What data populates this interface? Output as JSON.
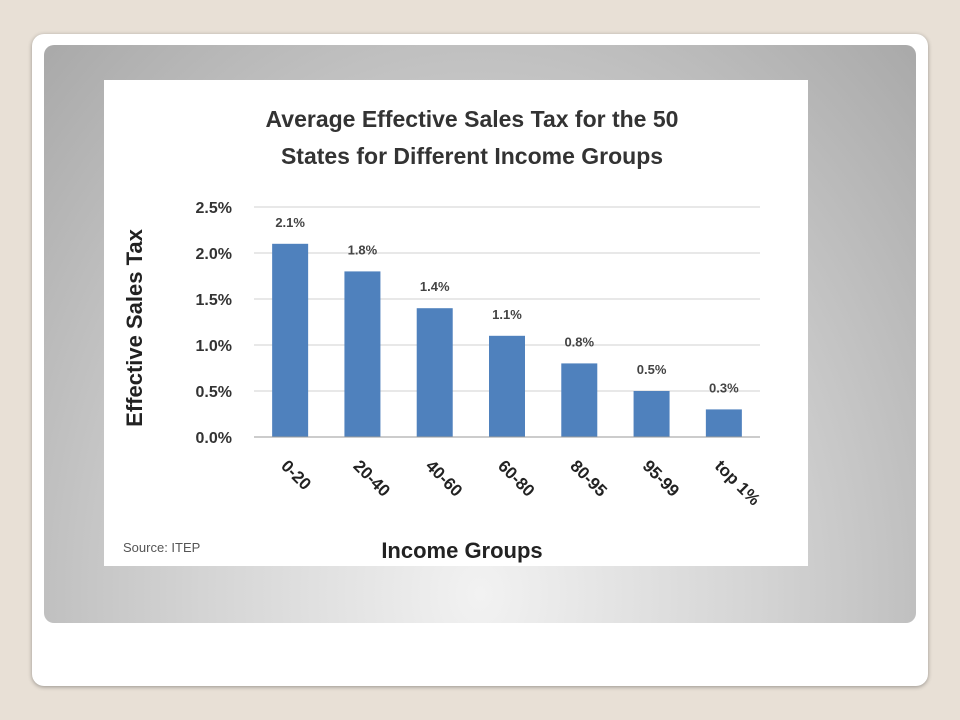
{
  "chart_data": {
    "type": "bar",
    "title": "Average Effective Sales Tax for the 50 States for Different Income Groups",
    "title_lines": [
      "Average Effective Sales Tax for the 50",
      "States for Different Income Groups"
    ],
    "xlabel": "Income Groups",
    "ylabel": "Effective Sales Tax",
    "categories": [
      "0-20",
      "20-40",
      "40-60",
      "60-80",
      "80-95",
      "95-99",
      "top 1%"
    ],
    "values": [
      2.1,
      1.8,
      1.4,
      1.1,
      0.8,
      0.5,
      0.3
    ],
    "data_labels": [
      "2.1%",
      "1.8%",
      "1.4%",
      "1.1%",
      "0.8%",
      "0.5%",
      "0.3%"
    ],
    "yticks": [
      "0.0%",
      "0.5%",
      "1.0%",
      "1.5%",
      "2.0%",
      "2.5%"
    ],
    "ytick_values": [
      0,
      0.5,
      1.0,
      1.5,
      2.0,
      2.5
    ],
    "ylim": [
      0,
      2.5
    ],
    "grid": true,
    "bar_color": "#4f81bd",
    "source": "Source: ITEP"
  }
}
